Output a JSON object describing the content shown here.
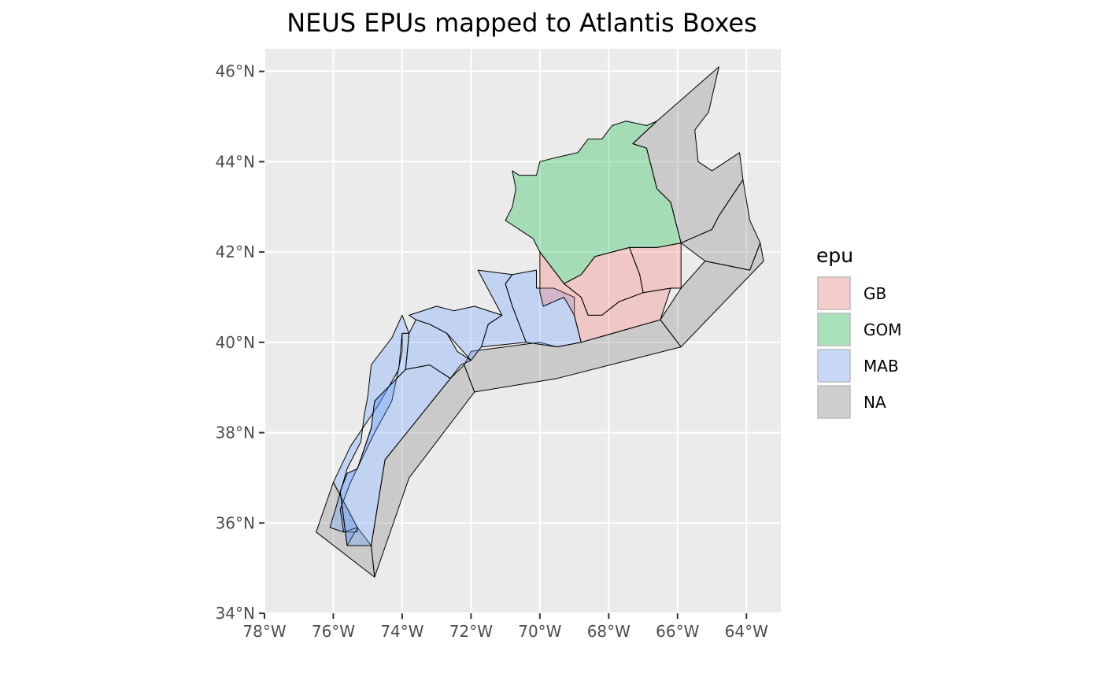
{
  "title": "NEUS EPUs mapped to Atlantis Boxes",
  "x_axis": {
    "ticks": [
      -78,
      -76,
      -74,
      -72,
      -70,
      -68,
      -66,
      -64
    ],
    "labels": [
      "78°W",
      "76°W",
      "74°W",
      "72°W",
      "70°W",
      "68°W",
      "66°W",
      "64°W"
    ]
  },
  "y_axis": {
    "ticks": [
      34,
      36,
      38,
      40,
      42,
      44,
      46
    ],
    "labels": [
      "34°N",
      "36°N",
      "38°N",
      "40°N",
      "42°N",
      "44°N",
      "46°N"
    ]
  },
  "legend": {
    "title": "epu",
    "items": [
      {
        "key": "GB",
        "label": "GB",
        "color": "#f8766d"
      },
      {
        "key": "GOM",
        "label": "GOM",
        "color": "#00ba38"
      },
      {
        "key": "MAB",
        "label": "MAB",
        "color": "#619cff"
      },
      {
        "key": "NA",
        "label": "NA",
        "color": "#7f7f7f"
      }
    ]
  },
  "colors": {
    "panel_background": "#ebebeb",
    "grid_line": "#ffffff",
    "fill_alpha": 0.3
  },
  "map_data": {
    "extent": {
      "lon": [
        -78,
        -63
      ],
      "lat": [
        34,
        46.5
      ]
    },
    "boxes": [
      {
        "epu": "NA",
        "coords": [
          [
            -74.8,
            34.8
          ],
          [
            -76.5,
            35.8
          ],
          [
            -76.0,
            36.9
          ],
          [
            -75.3,
            35.9
          ],
          [
            -74.9,
            35.5
          ]
        ]
      },
      {
        "epu": "NA",
        "coords": [
          [
            -74.8,
            34.8
          ],
          [
            -74.9,
            35.5
          ],
          [
            -74.5,
            37.4
          ],
          [
            -72.6,
            39.2
          ],
          [
            -72.2,
            39.5
          ],
          [
            -71.9,
            38.9
          ],
          [
            -73.8,
            37.0
          ]
        ]
      },
      {
        "epu": "NA",
        "coords": [
          [
            -71.9,
            38.9
          ],
          [
            -72.2,
            39.5
          ],
          [
            -72.0,
            39.8
          ],
          [
            -70.0,
            40.0
          ],
          [
            -69.5,
            39.9
          ],
          [
            -68.8,
            40.0
          ],
          [
            -66.5,
            40.5
          ],
          [
            -65.9,
            39.9
          ],
          [
            -69.5,
            39.2
          ]
        ]
      },
      {
        "epu": "NA",
        "coords": [
          [
            -65.9,
            39.9
          ],
          [
            -66.5,
            40.5
          ],
          [
            -65.9,
            41.2
          ],
          [
            -65.2,
            41.8
          ],
          [
            -63.9,
            41.6
          ],
          [
            -63.6,
            42.2
          ],
          [
            -63.5,
            41.8
          ]
        ]
      },
      {
        "epu": "NA",
        "coords": [
          [
            -65.2,
            41.8
          ],
          [
            -65.9,
            42.2
          ],
          [
            -65.0,
            42.5
          ],
          [
            -64.8,
            42.8
          ],
          [
            -64.1,
            43.6
          ],
          [
            -63.9,
            42.7
          ],
          [
            -63.6,
            42.2
          ],
          [
            -63.9,
            41.6
          ]
        ]
      },
      {
        "epu": "NA",
        "coords": [
          [
            -66.6,
            44.9
          ],
          [
            -64.8,
            46.1
          ],
          [
            -65.1,
            45.1
          ],
          [
            -65.5,
            44.7
          ],
          [
            -65.4,
            44.0
          ],
          [
            -65.0,
            43.8
          ],
          [
            -64.2,
            44.2
          ],
          [
            -64.1,
            43.6
          ],
          [
            -64.8,
            42.8
          ],
          [
            -65.0,
            42.5
          ],
          [
            -65.9,
            42.2
          ],
          [
            -66.1,
            42.8
          ],
          [
            -66.2,
            43.1
          ],
          [
            -66.6,
            43.4
          ],
          [
            -66.9,
            44.3
          ],
          [
            -67.3,
            44.4
          ]
        ]
      },
      {
        "epu": "MAB",
        "coords": [
          [
            -76.0,
            36.9
          ],
          [
            -75.5,
            37.7
          ],
          [
            -74.7,
            38.6
          ],
          [
            -74.1,
            39.4
          ],
          [
            -74.0,
            40.2
          ],
          [
            -73.8,
            40.2
          ],
          [
            -74.0,
            40.6
          ],
          [
            -74.3,
            40.1
          ],
          [
            -74.9,
            39.5
          ],
          [
            -75.0,
            38.8
          ],
          [
            -75.1,
            38.4
          ],
          [
            -75.2,
            37.8
          ],
          [
            -75.6,
            37.2
          ],
          [
            -75.9,
            36.4
          ],
          [
            -76.1,
            35.9
          ],
          [
            -75.7,
            35.8
          ],
          [
            -75.3,
            35.9
          ]
        ]
      },
      {
        "epu": "MAB",
        "coords": [
          [
            -75.3,
            35.9
          ],
          [
            -75.6,
            35.5
          ],
          [
            -75.8,
            36.7
          ],
          [
            -75.6,
            37.1
          ],
          [
            -75.3,
            37.2
          ],
          [
            -74.9,
            38.1
          ],
          [
            -74.8,
            38.7
          ],
          [
            -73.9,
            39.4
          ],
          [
            -73.8,
            40.2
          ],
          [
            -74.0,
            40.2
          ],
          [
            -74.0,
            39.8
          ],
          [
            -74.3,
            38.7
          ],
          [
            -74.8,
            38.0
          ],
          [
            -75.5,
            36.9
          ],
          [
            -75.8,
            36.3
          ],
          [
            -75.7,
            35.8
          ],
          [
            -75.3,
            35.8
          ]
        ]
      },
      {
        "epu": "MAB",
        "coords": [
          [
            -75.6,
            35.5
          ],
          [
            -74.9,
            35.5
          ],
          [
            -74.5,
            37.4
          ],
          [
            -72.6,
            39.2
          ],
          [
            -73.2,
            39.5
          ],
          [
            -73.9,
            39.4
          ],
          [
            -74.8,
            38.7
          ],
          [
            -74.9,
            38.1
          ],
          [
            -75.3,
            37.2
          ],
          [
            -75.6,
            37.1
          ],
          [
            -75.8,
            36.7
          ]
        ]
      },
      {
        "epu": "MAB",
        "coords": [
          [
            -73.8,
            40.2
          ],
          [
            -73.9,
            39.4
          ],
          [
            -73.2,
            39.5
          ],
          [
            -72.6,
            39.2
          ],
          [
            -72.3,
            39.5
          ],
          [
            -72.0,
            39.6
          ],
          [
            -72.4,
            39.8
          ],
          [
            -72.7,
            40.2
          ],
          [
            -73.2,
            40.4
          ],
          [
            -73.6,
            40.5
          ]
        ]
      },
      {
        "epu": "MAB",
        "coords": [
          [
            -73.6,
            40.5
          ],
          [
            -73.2,
            40.4
          ],
          [
            -72.7,
            40.2
          ],
          [
            -72.0,
            39.6
          ],
          [
            -71.7,
            39.9
          ],
          [
            -71.5,
            40.4
          ],
          [
            -71.1,
            40.6
          ],
          [
            -71.9,
            40.8
          ],
          [
            -72.5,
            40.7
          ],
          [
            -73.0,
            40.8
          ],
          [
            -73.8,
            40.6
          ]
        ]
      },
      {
        "epu": "MAB",
        "coords": [
          [
            -71.1,
            40.6
          ],
          [
            -71.5,
            40.4
          ],
          [
            -71.7,
            39.9
          ],
          [
            -70.4,
            40.0
          ],
          [
            -70.8,
            40.8
          ],
          [
            -71.0,
            41.3
          ],
          [
            -70.8,
            41.5
          ],
          [
            -71.8,
            41.6
          ]
        ]
      },
      {
        "epu": "MAB",
        "coords": [
          [
            -70.8,
            41.5
          ],
          [
            -71.0,
            41.3
          ],
          [
            -70.8,
            40.8
          ],
          [
            -70.4,
            40.0
          ],
          [
            -69.5,
            39.9
          ],
          [
            -68.8,
            40.0
          ],
          [
            -69.0,
            40.6
          ],
          [
            -69.0,
            41.0
          ],
          [
            -69.6,
            41.2
          ],
          [
            -70.1,
            41.2
          ],
          [
            -70.1,
            41.6
          ]
        ]
      },
      {
        "epu": "GB",
        "coords": [
          [
            -70.0,
            41.1
          ],
          [
            -70.0,
            42.0
          ],
          [
            -69.7,
            41.7
          ],
          [
            -69.3,
            41.3
          ],
          [
            -68.8,
            41.0
          ],
          [
            -68.6,
            40.6
          ],
          [
            -68.2,
            40.6
          ],
          [
            -67.7,
            40.9
          ],
          [
            -67.0,
            41.1
          ],
          [
            -66.2,
            41.2
          ],
          [
            -66.5,
            40.5
          ],
          [
            -68.8,
            40.0
          ],
          [
            -69.0,
            40.6
          ],
          [
            -69.3,
            41.0
          ],
          [
            -69.9,
            40.8
          ]
        ]
      },
      {
        "epu": "GB",
        "coords": [
          [
            -68.8,
            41.0
          ],
          [
            -69.3,
            41.3
          ],
          [
            -68.8,
            41.5
          ],
          [
            -68.4,
            41.9
          ],
          [
            -67.9,
            42.0
          ],
          [
            -67.4,
            42.1
          ],
          [
            -67.1,
            41.5
          ],
          [
            -67.0,
            41.1
          ],
          [
            -67.7,
            40.9
          ],
          [
            -68.2,
            40.6
          ],
          [
            -68.6,
            40.6
          ]
        ]
      },
      {
        "epu": "GB",
        "coords": [
          [
            -67.1,
            41.5
          ],
          [
            -67.4,
            42.1
          ],
          [
            -66.6,
            42.1
          ],
          [
            -65.9,
            42.2
          ],
          [
            -65.9,
            41.2
          ],
          [
            -66.2,
            41.2
          ],
          [
            -67.0,
            41.1
          ]
        ]
      },
      {
        "epu": "GOM",
        "coords": [
          [
            -70.8,
            43.8
          ],
          [
            -70.6,
            43.7
          ],
          [
            -70.1,
            43.7
          ],
          [
            -70.0,
            44.0
          ],
          [
            -69.5,
            44.1
          ],
          [
            -68.9,
            44.2
          ],
          [
            -68.6,
            44.5
          ],
          [
            -68.2,
            44.5
          ],
          [
            -67.9,
            44.8
          ],
          [
            -67.5,
            44.9
          ],
          [
            -66.9,
            44.8
          ],
          [
            -66.6,
            44.9
          ],
          [
            -67.3,
            44.4
          ],
          [
            -66.9,
            44.3
          ],
          [
            -66.6,
            43.4
          ],
          [
            -66.2,
            43.1
          ],
          [
            -66.1,
            42.8
          ],
          [
            -65.9,
            42.2
          ],
          [
            -66.6,
            42.1
          ],
          [
            -67.4,
            42.1
          ],
          [
            -67.9,
            42.0
          ],
          [
            -68.4,
            41.9
          ],
          [
            -68.8,
            41.5
          ],
          [
            -69.3,
            41.3
          ],
          [
            -69.7,
            41.7
          ],
          [
            -70.0,
            42.0
          ],
          [
            -70.2,
            42.3
          ],
          [
            -70.6,
            42.5
          ],
          [
            -71.0,
            42.7
          ],
          [
            -70.8,
            43.0
          ],
          [
            -70.7,
            43.4
          ]
        ]
      }
    ]
  }
}
